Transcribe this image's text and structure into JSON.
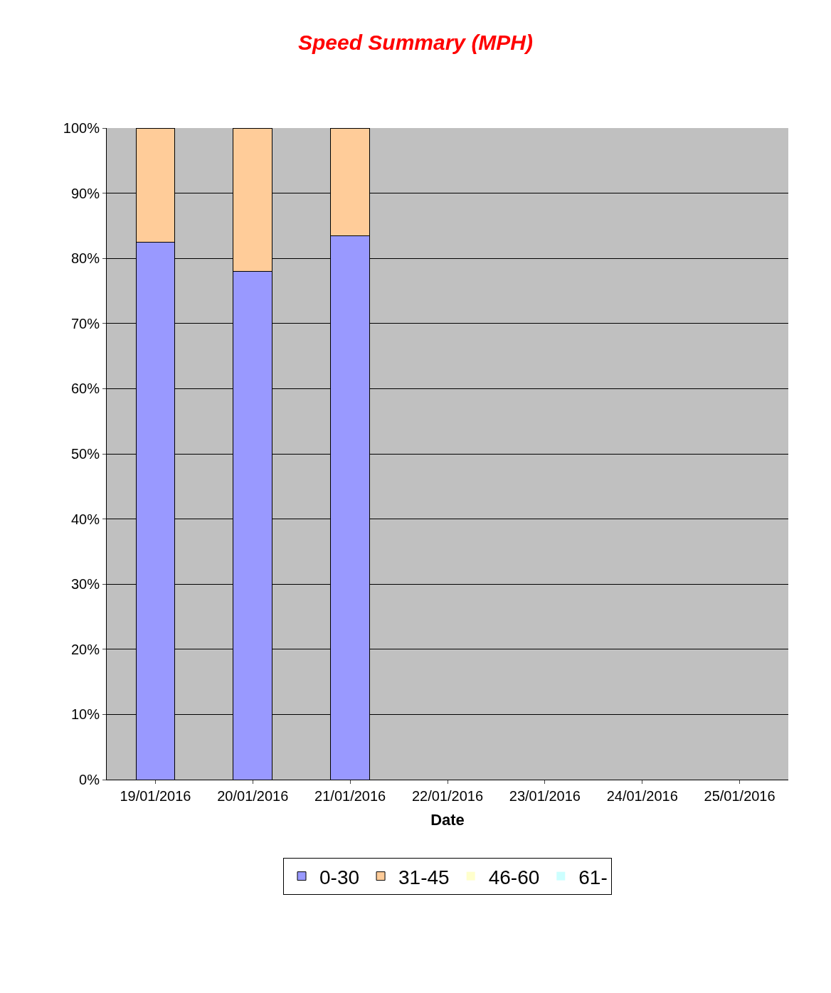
{
  "chart_data": {
    "type": "bar",
    "title": "Speed Summary (MPH)",
    "xlabel": "Date",
    "stacked": true,
    "categories": [
      "19/01/2016",
      "20/01/2016",
      "21/01/2016",
      "22/01/2016",
      "23/01/2016",
      "24/01/2016",
      "25/01/2016"
    ],
    "series": [
      {
        "name": "0-30",
        "color": "#9999ff",
        "values": [
          82.5,
          78,
          83.5,
          0,
          0,
          0,
          0
        ]
      },
      {
        "name": "31-45",
        "color": "#ffcc99",
        "values": [
          17.5,
          22,
          16.5,
          0,
          0,
          0,
          0
        ]
      },
      {
        "name": "46-60",
        "color": "#ffffcc",
        "values": [
          0,
          0,
          0,
          0,
          0,
          0,
          0
        ]
      },
      {
        "name": "61-",
        "color": "#ccffff",
        "values": [
          0,
          0,
          0,
          0,
          0,
          0,
          0
        ]
      }
    ],
    "ylim": [
      0,
      100
    ],
    "yticks": [
      {
        "value": 0,
        "label": "0%"
      },
      {
        "value": 10,
        "label": "10%"
      },
      {
        "value": 20,
        "label": "20%"
      },
      {
        "value": 30,
        "label": "30%"
      },
      {
        "value": 40,
        "label": "40%"
      },
      {
        "value": 50,
        "label": "50%"
      },
      {
        "value": 60,
        "label": "60%"
      },
      {
        "value": 70,
        "label": "70%"
      },
      {
        "value": 80,
        "label": "80%"
      },
      {
        "value": 90,
        "label": "90%"
      },
      {
        "value": 100,
        "label": "100%"
      }
    ],
    "grid": "y",
    "legend": "bottom"
  }
}
